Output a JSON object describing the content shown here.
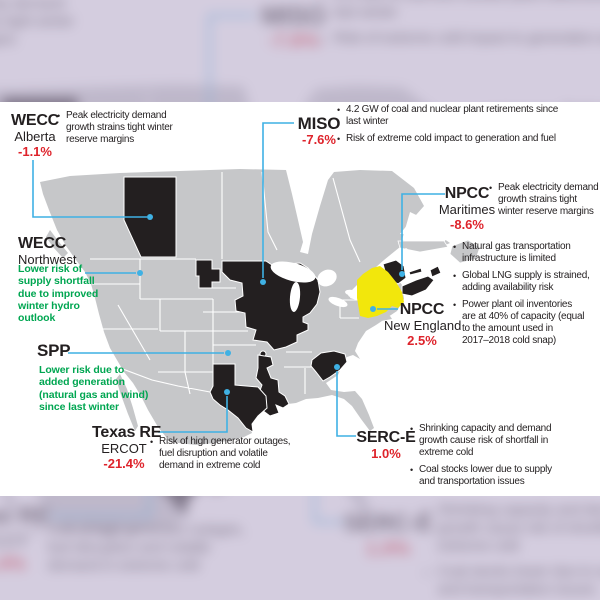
{
  "colors": {
    "accent_blue": "#3fb1e4",
    "risk_red": "#de232b",
    "lower_risk_green": "#00a651",
    "map_gray": "#c6c7c9",
    "map_dark": "#231f20",
    "map_highlight_yellow": "#f2e70c",
    "panel_bg": "#ffffff",
    "backdrop_tint": "#baaecb"
  },
  "bullet_marker": "•",
  "infographic": {
    "blocks": [
      {
        "id": "wecc-alberta",
        "name": "WECC",
        "subname": "Alberta",
        "value": "-1.1%",
        "bullets": [
          [
            "Peak electricity demand",
            "growth strains tight winter",
            "reserve margins"
          ]
        ]
      },
      {
        "id": "wecc-northwest",
        "name": "WECC",
        "subname": "Northwest",
        "note": [
          "Lower risk of",
          "supply shortfall",
          "due to improved",
          "winter hydro",
          "outlook"
        ]
      },
      {
        "id": "spp",
        "name": "SPP",
        "note": [
          "Lower risk due to",
          "added generation",
          "(natural gas and wind)",
          "since last winter"
        ]
      },
      {
        "id": "texas-re-ercot",
        "name": "Texas RE",
        "subname": "ERCOT",
        "value": "-21.4%",
        "bullets": [
          [
            "Risk of high generator outages,",
            "fuel disruption and volatile",
            "demand in extreme cold"
          ]
        ]
      },
      {
        "id": "miso",
        "name": "MISO",
        "value": "-7.6%",
        "bullets": [
          [
            "4.2 GW of coal and nuclear plant retirements since",
            "last winter"
          ],
          [
            "Risk of extreme cold impact to generation and fuel"
          ]
        ]
      },
      {
        "id": "npcc-maritimes",
        "name": "NPCC",
        "subname": "Maritimes",
        "value": "-8.6%",
        "bullets": [
          [
            "Peak electricity demand",
            "growth strains tight",
            "winter reserve margins"
          ]
        ]
      },
      {
        "id": "npcc-new-england",
        "name": "NPCC",
        "subname": "New England",
        "value": "2.5%",
        "bullets": [
          [
            "Natural gas transportation",
            "infrastructure is limited"
          ],
          [
            "Global LNG supply is strained,",
            "adding availability risk"
          ],
          [
            "Power plant oil inventories",
            "are at 40% of capacity (equal",
            "to the amount used in",
            "2017–2018 cold snap)"
          ]
        ]
      },
      {
        "id": "serc-e",
        "name": "SERC-E",
        "value": "1.0%",
        "bullets": [
          [
            "Shrinking capacity and demand",
            "growth cause risk of shortfall in",
            "extreme cold"
          ],
          [
            "Coal stocks lower due to supply",
            "and transportation issues"
          ]
        ]
      }
    ]
  }
}
